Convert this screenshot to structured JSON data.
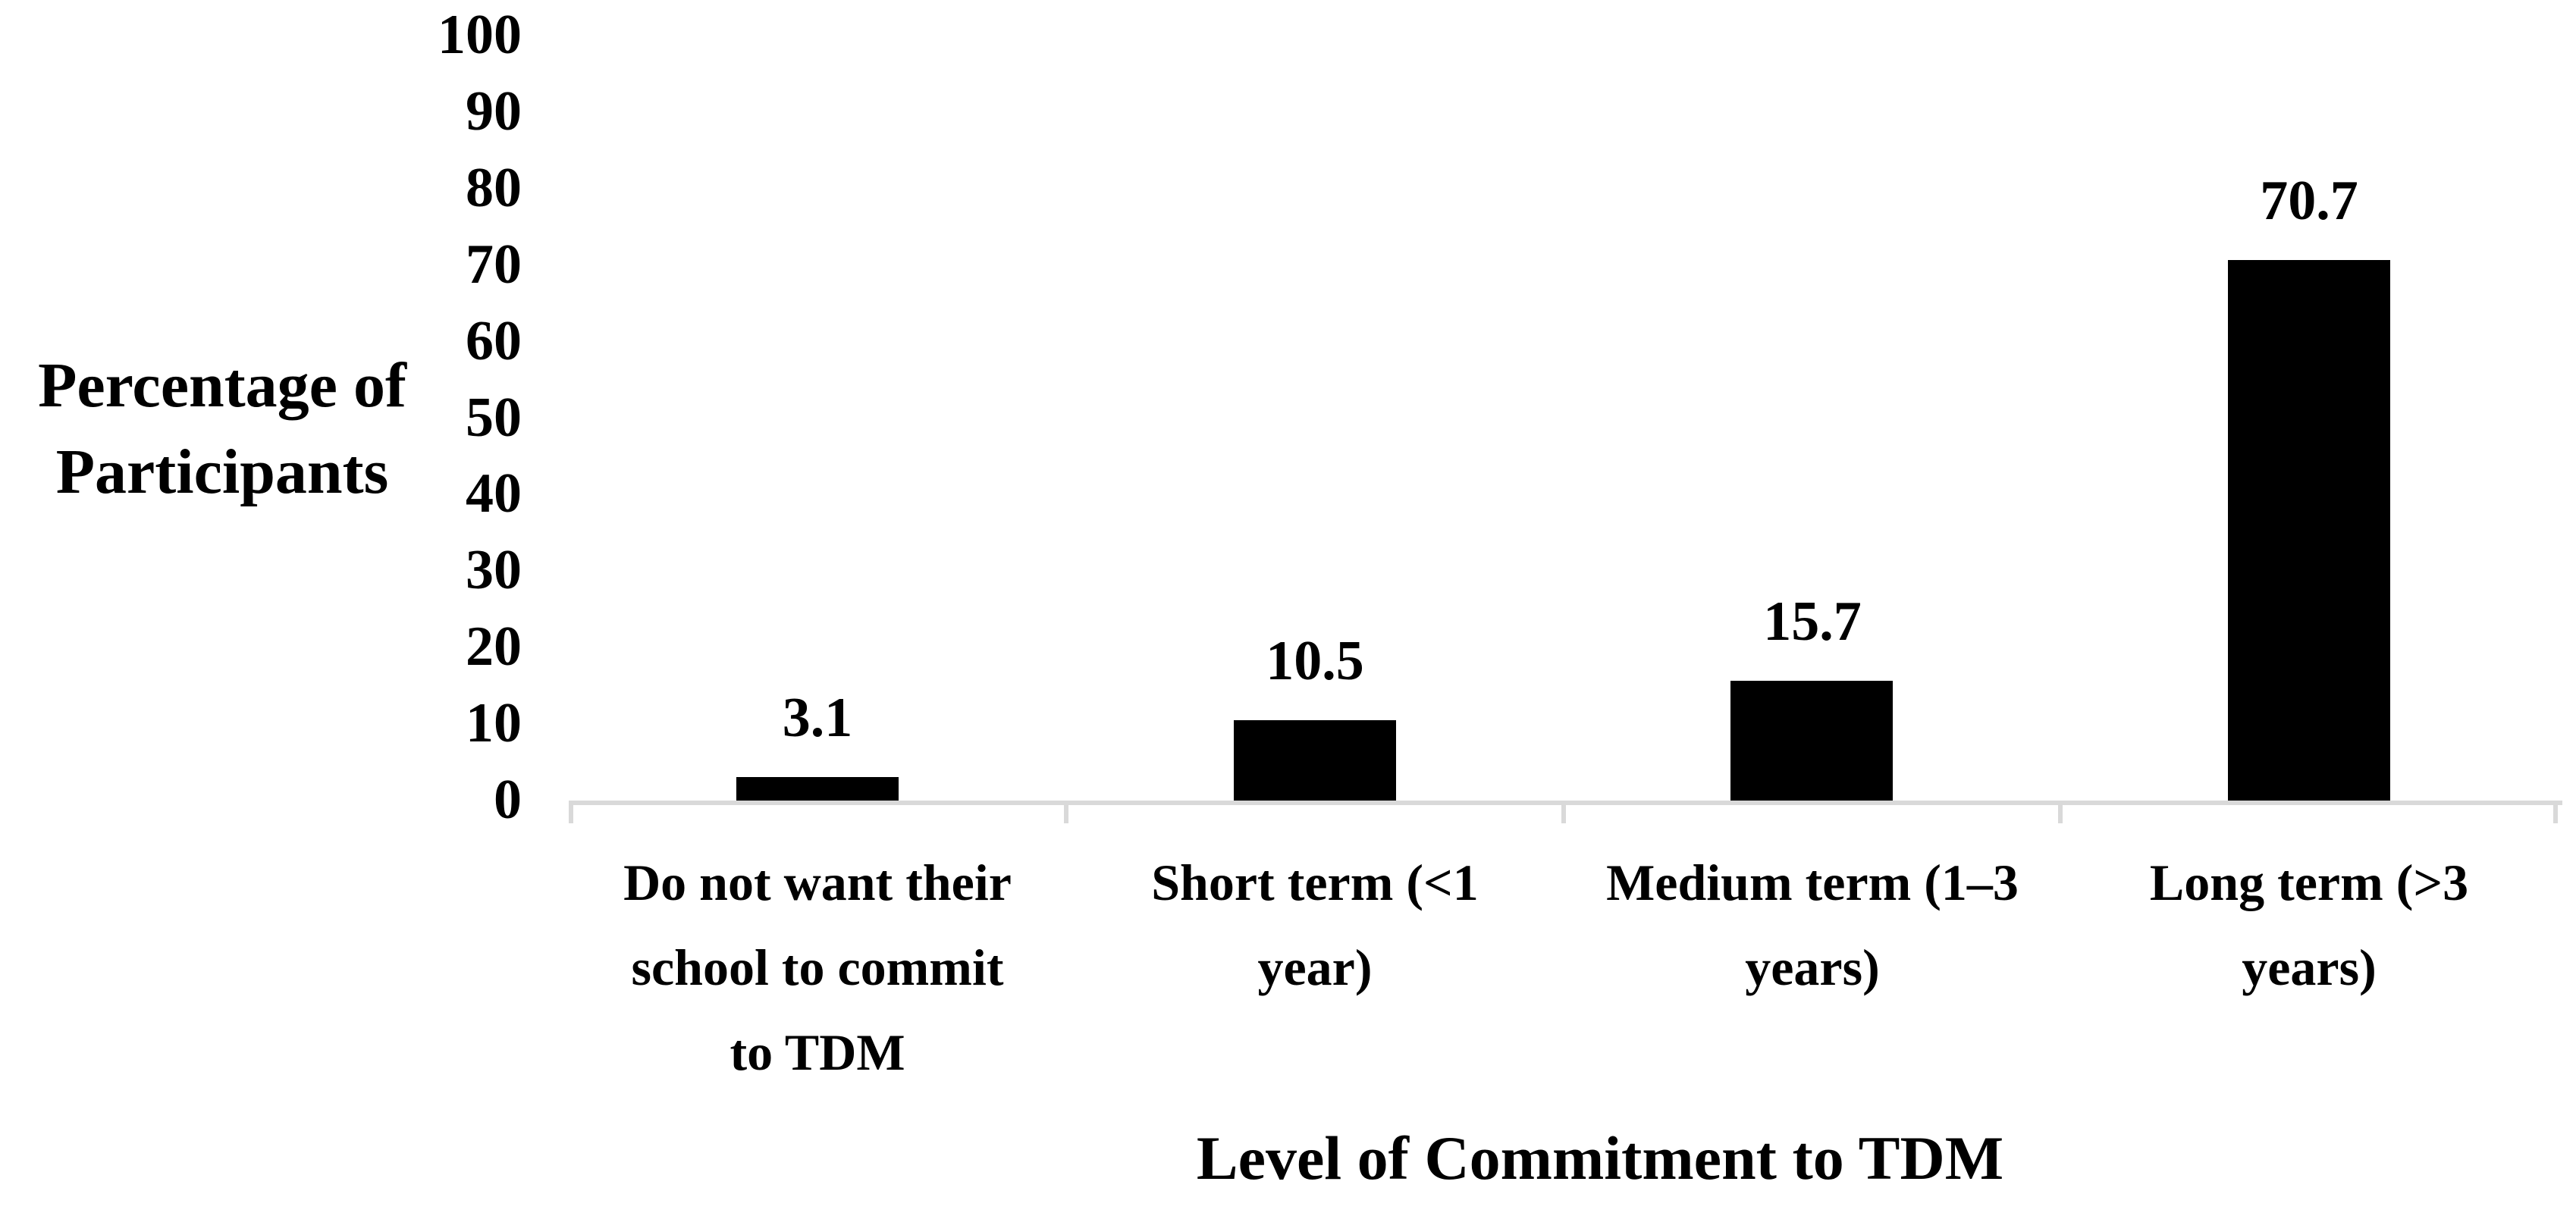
{
  "chart_data": {
    "type": "bar",
    "categories": [
      "Do not want their school to commit to TDM",
      "Short term (<1 year)",
      "Medium term (1–3 years)",
      "Long term (>3 years)"
    ],
    "category_lines": [
      [
        "Do not want their",
        "school to commit",
        "to TDM"
      ],
      [
        "Short term (<1",
        "year)"
      ],
      [
        "Medium term (1–3",
        "years)"
      ],
      [
        "Long term (>3",
        "years)"
      ]
    ],
    "values": [
      3.1,
      10.5,
      15.7,
      70.7
    ],
    "value_labels": [
      "3.1",
      "10.5",
      "15.7",
      "70.7"
    ],
    "title": "",
    "xlabel": "Level of Commitment to TDM",
    "ylabel": "Percentage of Participants",
    "ylabel_lines": [
      "Percentage of",
      "Participants"
    ],
    "ylim": [
      0,
      100
    ],
    "yticks": [
      0,
      10,
      20,
      30,
      40,
      50,
      60,
      70,
      80,
      90,
      100
    ],
    "grid": false,
    "legend": "none",
    "bar_color": "#000000",
    "axis_line_color": "#D9D9D9",
    "text_color": "#000000"
  }
}
